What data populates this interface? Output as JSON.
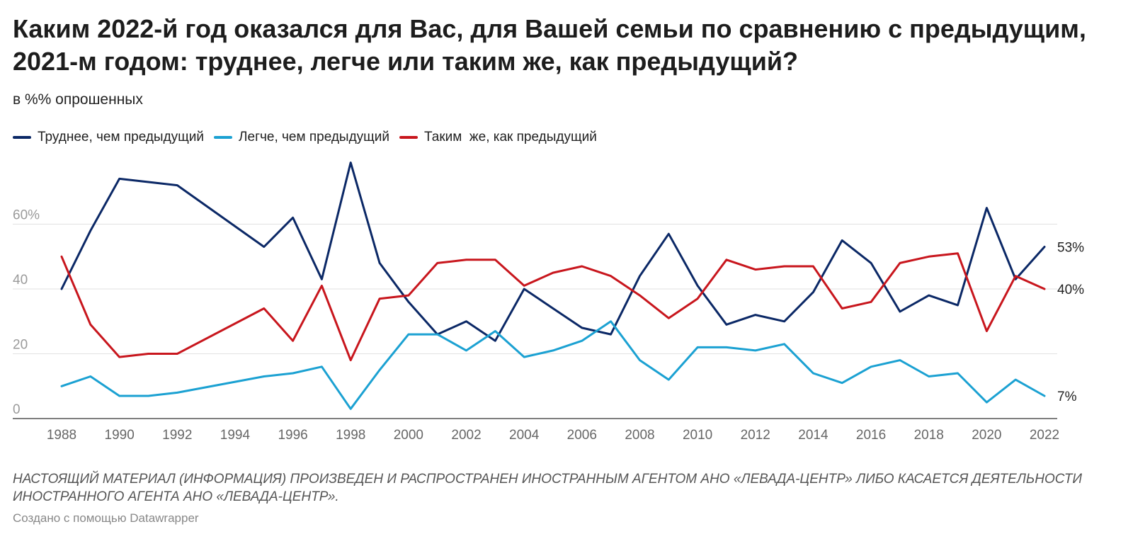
{
  "header": {
    "title": "Каким 2022-й год оказался для Вас, для Вашей семьи по сравнению с предыдущим, 2021-м годом: труднее, легче или таким же, как предыдущий?",
    "subtitle": "в %% опрошенных"
  },
  "chart_data": {
    "type": "line",
    "title": "Каким 2022-й год оказался для Вас, для Вашей семьи по сравнению с предыдущим, 2021-м годом: труднее, легче или таким же, как предыдущий?",
    "subtitle": "в %% опрошенных",
    "xlabel": "",
    "ylabel": "",
    "x": [
      1988,
      1989,
      1990,
      1991,
      1992,
      1995,
      1996,
      1997,
      1998,
      1999,
      2000,
      2001,
      2002,
      2003,
      2004,
      2005,
      2006,
      2007,
      2008,
      2009,
      2010,
      2011,
      2012,
      2013,
      2014,
      2015,
      2016,
      2017,
      2018,
      2019,
      2020,
      2021,
      2022
    ],
    "xlim": [
      1988,
      2022
    ],
    "ylim": [
      0,
      80
    ],
    "x_ticks": [
      "1988",
      "1990",
      "1992",
      "1994",
      "1996",
      "1998",
      "2000",
      "2002",
      "2004",
      "2006",
      "2008",
      "2010",
      "2012",
      "2014",
      "2016",
      "2018",
      "2020",
      "2022"
    ],
    "y_ticks": [
      {
        "value": 0,
        "label": "0"
      },
      {
        "value": 20,
        "label": "20"
      },
      {
        "value": 40,
        "label": "40"
      },
      {
        "value": 60,
        "label": "60%"
      }
    ],
    "grid": true,
    "legend_position": "top-left",
    "series": [
      {
        "name": "Труднее, чем предыдущий",
        "color": "#0b2866",
        "values": [
          40,
          58,
          74,
          73,
          72,
          53,
          62,
          43,
          79,
          48,
          36,
          26,
          30,
          24,
          40,
          34,
          28,
          26,
          44,
          57,
          41,
          29,
          32,
          30,
          39,
          55,
          48,
          33,
          38,
          35,
          65,
          43,
          53
        ],
        "end_label": "53%"
      },
      {
        "name": "Легче, чем предыдущий",
        "color": "#1ba1d2",
        "values": [
          10,
          13,
          7,
          7,
          8,
          13,
          14,
          16,
          3,
          15,
          26,
          26,
          21,
          27,
          19,
          21,
          24,
          30,
          18,
          12,
          22,
          22,
          21,
          23,
          14,
          11,
          16,
          18,
          13,
          14,
          5,
          12,
          7
        ],
        "end_label": "7%"
      },
      {
        "name": "Таким  же, как предыдущий",
        "color": "#c8161d",
        "values": [
          50,
          29,
          19,
          20,
          20,
          34,
          24,
          41,
          18,
          37,
          38,
          48,
          49,
          49,
          41,
          45,
          47,
          44,
          38,
          31,
          37,
          49,
          46,
          47,
          47,
          34,
          36,
          48,
          50,
          51,
          27,
          44,
          40
        ],
        "end_label": "40%"
      }
    ]
  },
  "footer": {
    "notes": "НАСТОЯЩИЙ МАТЕРИАЛ (ИНФОРМАЦИЯ) ПРОИЗВЕДЕН И РАСПРОСТРАНЕН ИНОСТРАННЫМ АГЕНТОМ АНО «ЛЕВАДА-ЦЕНТР» ЛИБО КАСАЕТСЯ ДЕЯТЕЛЬНОСТИ ИНОСТРАННОГО АГЕНТА АНО «ЛЕВАДА-ЦЕНТР».",
    "credit": "Создано с помощью Datawrapper"
  }
}
